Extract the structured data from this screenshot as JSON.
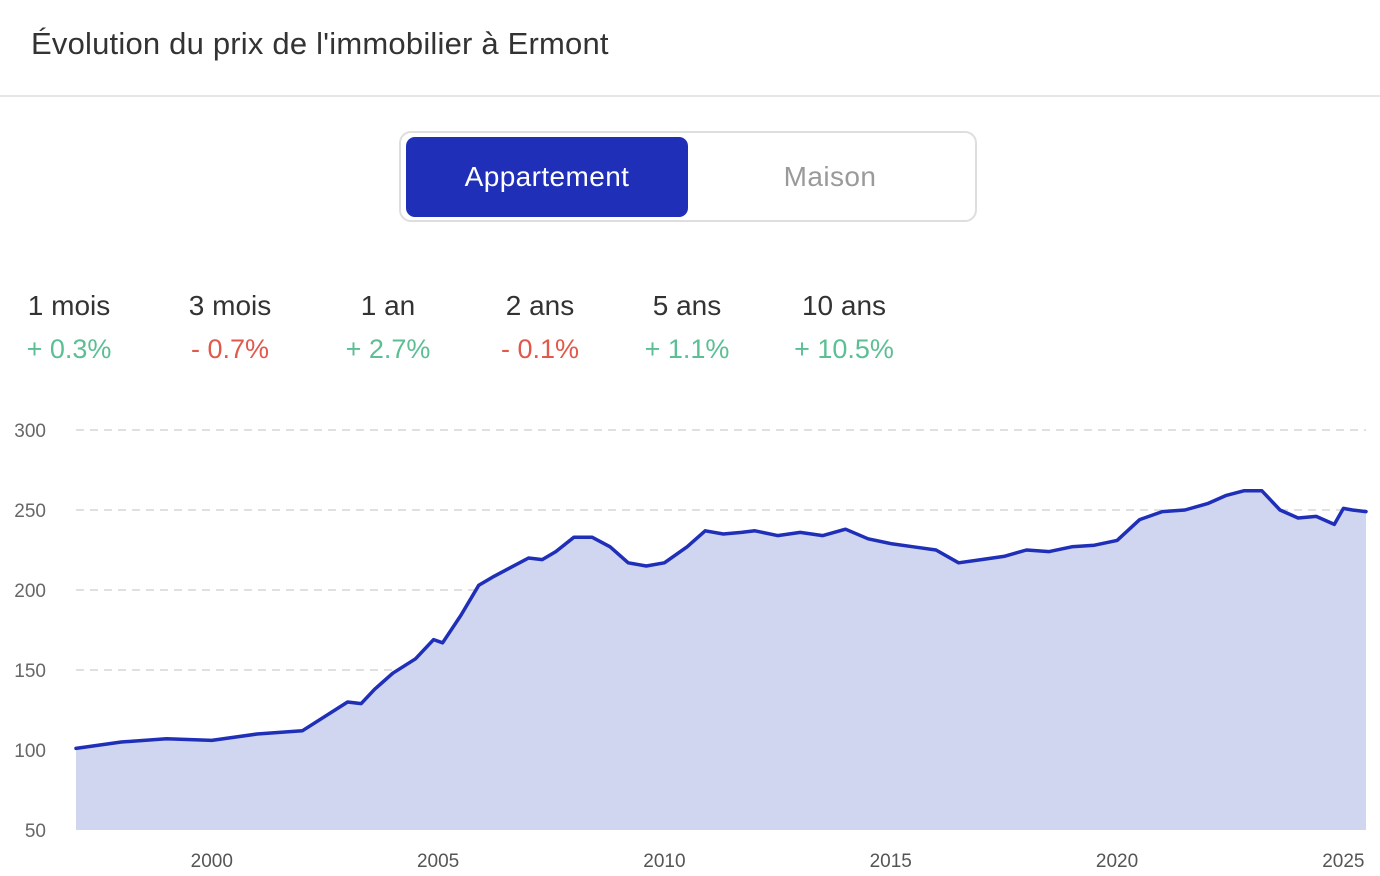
{
  "header": {
    "title": "Évolution du prix de l'immobilier à Ermont"
  },
  "toggle": {
    "options": [
      "Appartement",
      "Maison"
    ],
    "selected": "Appartement"
  },
  "colors": {
    "accent": "#1f2fb8",
    "area_fill": "#d0d5f0",
    "positive": "#5cbf94",
    "negative": "#e2584a"
  },
  "stats": [
    {
      "label": "1 mois",
      "value": "+ 0.3%",
      "trend": "positive"
    },
    {
      "label": "3 mois",
      "value": "- 0.7%",
      "trend": "negative"
    },
    {
      "label": "1 an",
      "value": "+ 2.7%",
      "trend": "positive"
    },
    {
      "label": "2 ans",
      "value": "- 0.1%",
      "trend": "negative"
    },
    {
      "label": "5 ans",
      "value": "+ 1.1%",
      "trend": "positive"
    },
    {
      "label": "10 ans",
      "value": "+ 10.5%",
      "trend": "positive"
    }
  ],
  "chart_data": {
    "type": "area",
    "title": "",
    "xlabel": "",
    "ylabel": "",
    "ylim": [
      50,
      300
    ],
    "xlim": [
      1997,
      2025.5
    ],
    "y_ticks": [
      50,
      100,
      150,
      200,
      250,
      300
    ],
    "x_ticks": [
      2000,
      2005,
      2010,
      2015,
      2020,
      2025
    ],
    "grid": "horizontal dashed",
    "legend": "none",
    "series": [
      {
        "name": "",
        "x": [
          1997,
          1998,
          1999,
          2000,
          2001,
          2002,
          2003,
          2003.3,
          2003.6,
          2004,
          2004.5,
          2004.9,
          2005.1,
          2005.5,
          2005.9,
          2006.2,
          2006.6,
          2007,
          2007.3,
          2007.6,
          2008,
          2008.4,
          2008.8,
          2009.2,
          2009.6,
          2010,
          2010.5,
          2010.9,
          2011.3,
          2011.7,
          2012,
          2012.5,
          2013,
          2013.5,
          2014,
          2014.5,
          2015,
          2015.5,
          2016,
          2016.5,
          2017,
          2017.5,
          2018,
          2018.5,
          2019,
          2019.5,
          2020,
          2020.5,
          2021,
          2021.5,
          2022,
          2022.4,
          2022.8,
          2023.2,
          2023.6,
          2024,
          2024.4,
          2024.8,
          2025,
          2025.2,
          2025.5
        ],
        "values": [
          101,
          105,
          107,
          106,
          110,
          112,
          130,
          129,
          138,
          148,
          157,
          169,
          167,
          184,
          203,
          208,
          214,
          220,
          219,
          224,
          233,
          233,
          227,
          217,
          215,
          217,
          227,
          237,
          235,
          236,
          237,
          234,
          236,
          234,
          238,
          232,
          229,
          227,
          225,
          217,
          219,
          221,
          225,
          224,
          227,
          228,
          231,
          244,
          249,
          250,
          254,
          259,
          262,
          262,
          250,
          245,
          246,
          241,
          251,
          250,
          249
        ]
      }
    ]
  }
}
